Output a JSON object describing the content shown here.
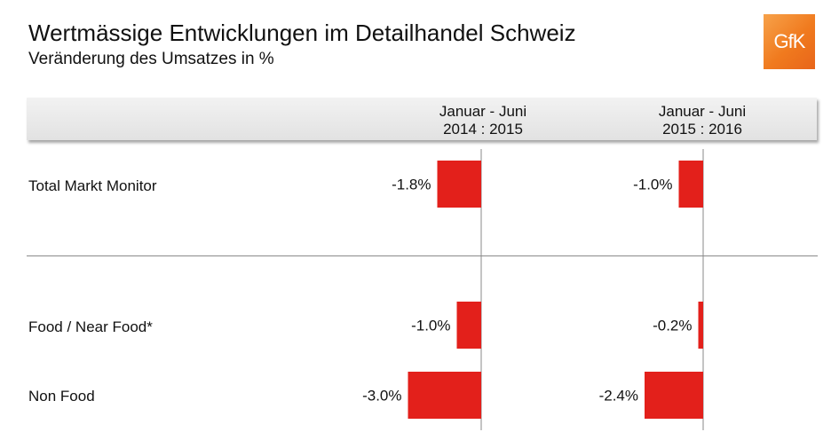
{
  "header": {
    "title": "Wertmässige Entwicklungen im Detailhandel Schweiz",
    "subtitle": "Veränderung des Umsatzes in %"
  },
  "logo": {
    "text": "GfK",
    "color": "#f07a1e"
  },
  "colors": {
    "bar": "#e3201b",
    "axis": "#8a8a8a"
  },
  "chart_data": {
    "type": "bar",
    "orientation": "horizontal",
    "categories": [
      "Total Markt Monitor",
      "Food / Near Food*",
      "Non Food"
    ],
    "series": [
      {
        "name_line1": "Januar - Juni",
        "name_line2": "2014 : 2015",
        "values": [
          -1.8,
          -1.0,
          -3.0
        ],
        "labels": [
          "-1.8%",
          "-1.0%",
          "-3.0%"
        ]
      },
      {
        "name_line1": "Januar - Juni",
        "name_line2": "2015 : 2016",
        "values": [
          -1.0,
          -0.2,
          -2.4
        ],
        "labels": [
          "-1.0%",
          "-0.2%",
          "-2.4%"
        ]
      }
    ],
    "grid": false
  }
}
